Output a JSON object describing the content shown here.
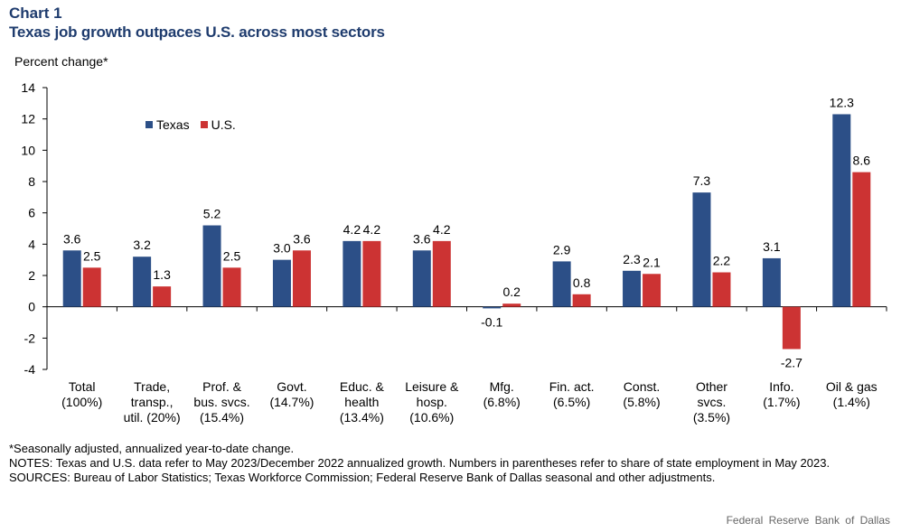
{
  "header": {
    "chart_number": "Chart 1",
    "title": "Texas job growth outpaces U.S. across most sectors",
    "y_unit": "Percent change*"
  },
  "colors": {
    "texas": "#2c4f87",
    "us": "#cc3333"
  },
  "chart_data": {
    "type": "bar",
    "title": "Texas job growth outpaces U.S. across most sectors",
    "ylabel": "Percent change*",
    "ylim": [
      -4,
      14
    ],
    "yticks": [
      -4,
      -2,
      0,
      2,
      4,
      6,
      8,
      10,
      12,
      14
    ],
    "legend_position": "top-left",
    "categories": [
      [
        "Total",
        "(100%)"
      ],
      [
        "Trade,",
        "transp.,",
        "util. (20%)"
      ],
      [
        "Prof. &",
        "bus. svcs.",
        "(15.4%)"
      ],
      [
        "Govt.",
        "(14.7%)"
      ],
      [
        "Educ. &",
        "health",
        "(13.4%)"
      ],
      [
        "Leisure &",
        "hosp.",
        "(10.6%)"
      ],
      [
        "Mfg.",
        "(6.8%)"
      ],
      [
        "Fin. act.",
        "(6.5%)"
      ],
      [
        "Const.",
        "(5.8%)"
      ],
      [
        "Other",
        "svcs.",
        "(3.5%)"
      ],
      [
        "Info.",
        "(1.7%)"
      ],
      [
        "Oil & gas",
        "(1.4%)"
      ]
    ],
    "series": [
      {
        "name": "Texas",
        "values": [
          3.6,
          3.2,
          5.2,
          3.0,
          4.2,
          3.6,
          -0.1,
          2.9,
          2.3,
          7.3,
          3.1,
          12.3
        ],
        "labels": [
          "3.6",
          "3.2",
          "5.2",
          "3.0",
          "4.2",
          "3.6",
          "-0.1",
          "2.9",
          "2.3",
          "7.3",
          "3.1",
          "12.3"
        ]
      },
      {
        "name": "U.S.",
        "values": [
          2.5,
          1.3,
          2.5,
          3.6,
          4.2,
          4.2,
          0.2,
          0.8,
          2.1,
          2.2,
          -2.7,
          8.6
        ],
        "labels": [
          "2.5",
          "1.3",
          "2.5",
          "3.6",
          "4.2",
          "4.2",
          "0.2",
          "0.8",
          "2.1",
          "2.2",
          "-2.7",
          "8.6"
        ]
      }
    ]
  },
  "notes": {
    "footnote": "*Seasonally adjusted, annualized year-to-date change.",
    "notes": "NOTES: Texas and U.S. data refer to May 2023/December 2022 annualized growth. Numbers in parentheses refer to share of state employment in May 2023.",
    "sources": "SOURCES: Bureau of Labor Statistics; Texas Workforce Commission; Federal Reserve Bank of Dallas seasonal and other adjustments."
  },
  "credit": "Federal Reserve Bank of Dallas"
}
